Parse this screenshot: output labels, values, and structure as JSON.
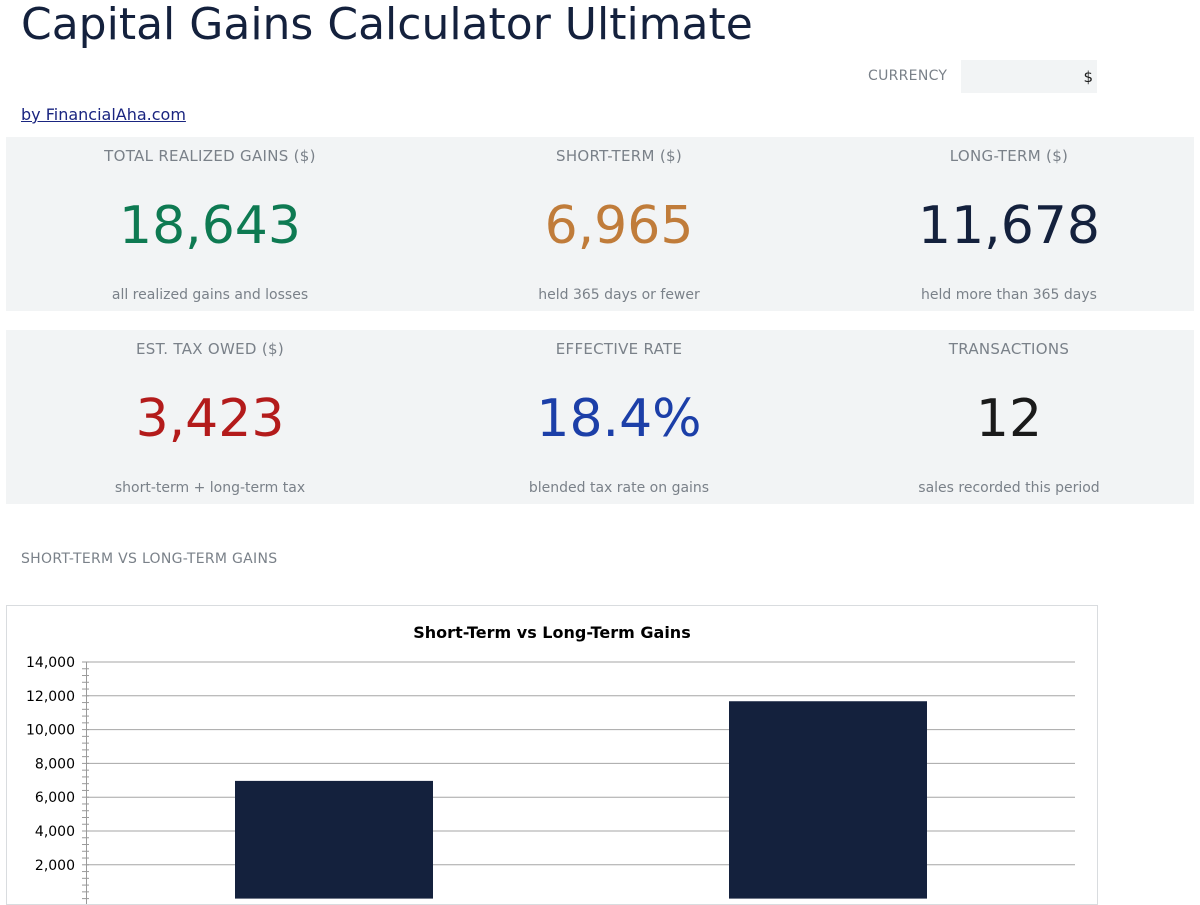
{
  "header": {
    "title": "Capital Gains Calculator Ultimate",
    "brand_link": "by FinancialAha.com"
  },
  "currency": {
    "label": "CURRENCY",
    "value": "$"
  },
  "kpis": [
    {
      "label": "TOTAL REALIZED GAINS ($)",
      "value": "18,643",
      "sub": "all realized gains and losses",
      "color": "#0e7a52"
    },
    {
      "label": "SHORT-TERM ($)",
      "value": "6,965",
      "sub": "held 365 days or fewer",
      "color": "#c07c3a"
    },
    {
      "label": "LONG-TERM ($)",
      "value": "11,678",
      "sub": "held more than 365 days",
      "color": "#14213d"
    },
    {
      "label": "EST. TAX OWED ($)",
      "value": "3,423",
      "sub": "short-term + long-term tax",
      "color": "#b31b1b"
    },
    {
      "label": "EFFECTIVE RATE",
      "value": "18.4%",
      "sub": "blended tax rate on gains",
      "color": "#1c3fa8"
    },
    {
      "label": "TRANSACTIONS",
      "value": "12",
      "sub": "sales recorded this period",
      "color": "#1a1a1a"
    }
  ],
  "section": {
    "title": "SHORT-TERM VS LONG-TERM GAINS"
  },
  "chart_data": {
    "type": "bar",
    "title": "Short-Term vs Long-Term Gains",
    "categories": [
      "",
      ""
    ],
    "values": [
      6965,
      11678
    ],
    "xlabel": "",
    "ylabel": "",
    "ylim": [
      0,
      14000
    ],
    "yticks": [
      2000,
      4000,
      6000,
      8000,
      10000,
      12000,
      14000
    ],
    "ytick_labels": [
      "2,000",
      "4,000",
      "6,000",
      "8,000",
      "10,000",
      "12,000",
      "14,000"
    ],
    "grid": true,
    "bar_color": "#14213d"
  }
}
